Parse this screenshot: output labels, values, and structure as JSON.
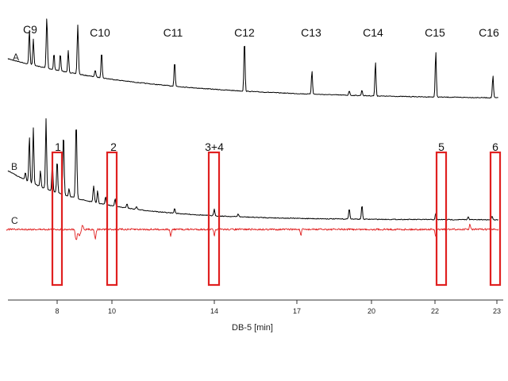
{
  "chart_data": {
    "type": "line",
    "xlabel": "DB-5 [min]",
    "x_ticks": [
      "8",
      "10",
      "14",
      "17",
      "20",
      "22",
      "23"
    ],
    "traces": [
      {
        "label": "A",
        "color": "#000000"
      },
      {
        "label": "B",
        "color": "#000000"
      },
      {
        "label": "C",
        "color": "#e02020"
      }
    ],
    "peak_labels": [
      "C9",
      "C10",
      "C11",
      "C12",
      "C13",
      "C14",
      "C15",
      "C16"
    ],
    "marked_regions": [
      "1",
      "2",
      "3+4",
      "5",
      "6"
    ],
    "colors": {
      "trace": "#000000",
      "difference_trace": "#e02020",
      "region_box": "#e02020"
    }
  }
}
